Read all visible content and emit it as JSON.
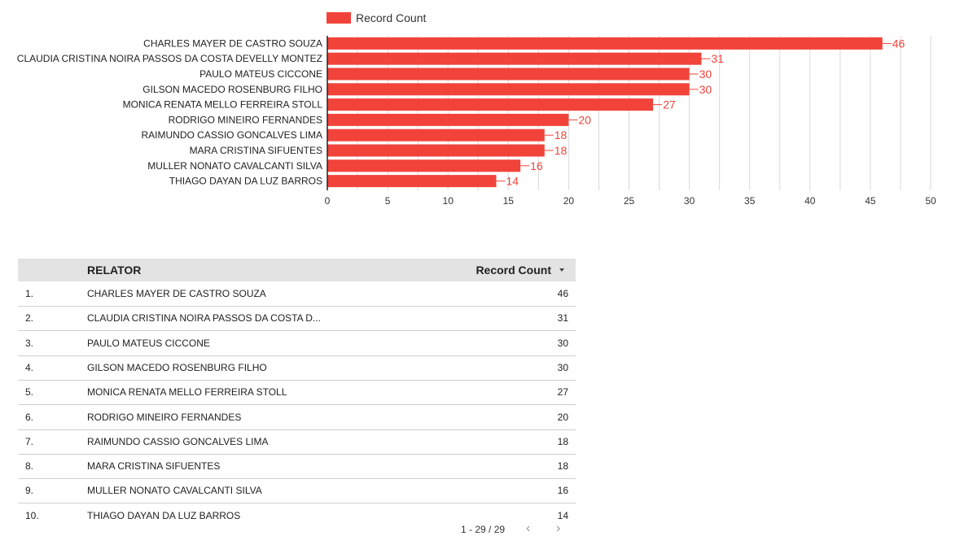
{
  "chart_data": {
    "type": "bar",
    "orientation": "horizontal",
    "categories": [
      "CHARLES MAYER DE CASTRO SOUZA",
      "CLAUDIA CRISTINA NOIRA PASSOS DA COSTA DEVELLY MONTEZ",
      "PAULO MATEUS CICCONE",
      "GILSON MACEDO ROSENBURG FILHO",
      "MONICA RENATA MELLO FERREIRA STOLL",
      "RODRIGO MINEIRO FERNANDES",
      "RAIMUNDO CASSIO GONCALVES LIMA",
      "MARA CRISTINA SIFUENTES",
      "MULLER NONATO CAVALCANTI SILVA",
      "THIAGO DAYAN DA LUZ BARROS"
    ],
    "series": [
      {
        "name": "Record Count",
        "values": [
          46,
          31,
          30,
          30,
          27,
          20,
          18,
          18,
          16,
          14
        ],
        "color": "#f2433a"
      }
    ],
    "xlim": [
      0,
      50
    ],
    "xticks": [
      "0",
      "5",
      "10",
      "15",
      "20",
      "25",
      "30",
      "35",
      "40",
      "45",
      "50"
    ],
    "grid": true,
    "legend": "top"
  },
  "table": {
    "headers": {
      "name": "RELATOR",
      "count": "Record Count"
    },
    "rows": [
      {
        "idx": "1.",
        "name": "CHARLES MAYER DE CASTRO SOUZA",
        "value": "46"
      },
      {
        "idx": "2.",
        "name": "CLAUDIA CRISTINA NOIRA PASSOS DA COSTA D...",
        "value": "31"
      },
      {
        "idx": "3.",
        "name": "PAULO MATEUS CICCONE",
        "value": "30"
      },
      {
        "idx": "4.",
        "name": "GILSON MACEDO ROSENBURG FILHO",
        "value": "30"
      },
      {
        "idx": "5.",
        "name": "MONICA RENATA MELLO FERREIRA STOLL",
        "value": "27"
      },
      {
        "idx": "6.",
        "name": "RODRIGO MINEIRO FERNANDES",
        "value": "20"
      },
      {
        "idx": "7.",
        "name": "RAIMUNDO CASSIO GONCALVES LIMA",
        "value": "18"
      },
      {
        "idx": "8.",
        "name": "MARA CRISTINA SIFUENTES",
        "value": "18"
      },
      {
        "idx": "9.",
        "name": "MULLER NONATO CAVALCANTI SILVA",
        "value": "16"
      },
      {
        "idx": "10.",
        "name": "THIAGO DAYAN DA LUZ BARROS",
        "value": "14"
      }
    ],
    "pagination": "1 - 29 / 29",
    "prev_icon": "‹",
    "next_icon": "›"
  }
}
